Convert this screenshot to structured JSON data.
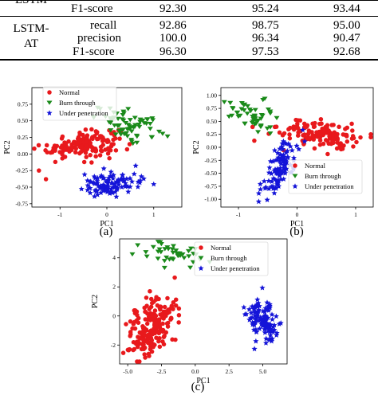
{
  "table": {
    "rows": [
      {
        "model": "LSTM",
        "metric": "F1-score",
        "values": [
          "92.30",
          "95.24",
          "93.44"
        ]
      },
      {
        "model": "LSTM-\nAT",
        "metric": "recall",
        "values": [
          "92.86",
          "98.75",
          "95.00"
        ]
      },
      {
        "model": "",
        "metric": "precision",
        "values": [
          "100.0",
          "96.34",
          "90.47"
        ]
      },
      {
        "model": "",
        "metric": "F1-score",
        "values": [
          "96.30",
          "97.53",
          "92.68"
        ]
      }
    ]
  },
  "captions": {
    "a": "(a)",
    "b": "(b)",
    "c": "(c)"
  },
  "chart_data": [
    {
      "type": "scatter",
      "panel": "a",
      "xlabel": "PC1",
      "ylabel": "PC2",
      "xlim": [
        -1.6,
        1.6
      ],
      "ylim": [
        -0.8,
        1.0
      ],
      "xticks": [
        -1,
        0,
        1
      ],
      "yticks": [
        -0.75,
        -0.5,
        -0.25,
        0.0,
        0.25,
        0.5,
        0.75
      ],
      "legend": {
        "placement": "top-left",
        "entries": [
          "Normal",
          "Burn through",
          "Under penetration"
        ]
      },
      "series": [
        {
          "name": "Normal",
          "color": "#e8191c",
          "marker": "circle",
          "n": 160,
          "center": [
            -0.5,
            0.15
          ],
          "spread": [
            0.38,
            0.1
          ],
          "rho": 0.3,
          "extra": [
            [
              -1.45,
              -0.25
            ],
            [
              -1.3,
              -0.38
            ],
            [
              -1.1,
              -0.12
            ],
            [
              -1.2,
              0.02
            ]
          ]
        },
        {
          "name": "Burn through",
          "color": "#1a8a1a",
          "marker": "triangle-down",
          "n": 70,
          "center": [
            0.5,
            0.43
          ],
          "spread": [
            0.38,
            0.12
          ],
          "rho": -0.5,
          "extra": []
        },
        {
          "name": "Under penetration",
          "color": "#1414d8",
          "marker": "star",
          "n": 110,
          "center": [
            0.1,
            -0.45
          ],
          "spread": [
            0.3,
            0.1
          ],
          "rho": 0.5,
          "extra": []
        }
      ]
    },
    {
      "type": "scatter",
      "panel": "b",
      "xlabel": "PC1",
      "ylabel": "PC2",
      "xlim": [
        -1.3,
        1.3
      ],
      "ylim": [
        -1.15,
        1.15
      ],
      "xticks": [
        -1,
        0,
        1
      ],
      "yticks": [
        -1.0,
        -0.75,
        -0.5,
        -0.25,
        0.0,
        0.25,
        0.5,
        0.75,
        1.0
      ],
      "legend": {
        "placement": "bottom-right",
        "entries": [
          "Normal",
          "Burn through",
          "Under penetration"
        ]
      },
      "series": [
        {
          "name": "Normal",
          "color": "#e8191c",
          "marker": "circle",
          "n": 140,
          "center": [
            0.4,
            0.25
          ],
          "spread": [
            0.35,
            0.15
          ],
          "rho": -0.4,
          "extra": []
        },
        {
          "name": "Burn through",
          "color": "#1a8a1a",
          "marker": "triangle-down",
          "n": 50,
          "center": [
            -0.8,
            0.62
          ],
          "spread": [
            0.2,
            0.16
          ],
          "rho": -0.4,
          "extra": []
        },
        {
          "name": "Under penetration",
          "color": "#1414d8",
          "marker": "star",
          "n": 110,
          "center": [
            -0.3,
            -0.4
          ],
          "spread": [
            0.16,
            0.3
          ],
          "rho": 0.7,
          "extra": []
        }
      ]
    },
    {
      "type": "scatter",
      "panel": "c",
      "xlabel": "PC1",
      "ylabel": "PC2",
      "xlim": [
        -5.6,
        6.8
      ],
      "ylim": [
        -3.3,
        5.3
      ],
      "xticks": [
        -5.0,
        -2.5,
        0.0,
        2.5,
        5.0
      ],
      "yticks": [
        -2,
        0,
        2,
        4
      ],
      "legend": {
        "placement": "top-right",
        "entries": [
          "Normal",
          "Burn through",
          "Under penetration"
        ]
      },
      "series": [
        {
          "name": "Normal",
          "color": "#e8191c",
          "marker": "circle",
          "n": 210,
          "center": [
            -3.2,
            -0.8
          ],
          "spread": [
            0.9,
            1.1
          ],
          "rho": 0.45,
          "extra": []
        },
        {
          "name": "Burn through",
          "color": "#1a8a1a",
          "marker": "triangle-down",
          "n": 45,
          "center": [
            -1.5,
            4.2
          ],
          "spread": [
            1.2,
            0.45
          ],
          "rho": -0.3,
          "extra": []
        },
        {
          "name": "Under penetration",
          "color": "#1414d8",
          "marker": "star",
          "n": 120,
          "center": [
            5.0,
            -0.3
          ],
          "spread": [
            0.6,
            0.75
          ],
          "rho": -0.4,
          "extra": []
        }
      ]
    }
  ]
}
